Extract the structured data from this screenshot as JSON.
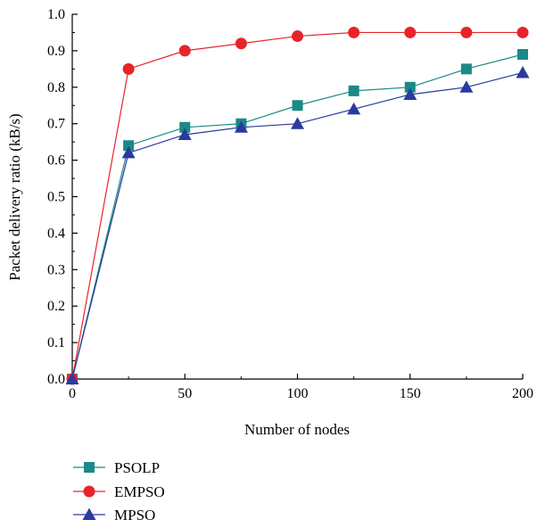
{
  "chart_data": {
    "type": "line",
    "xlabel": "Number of nodes",
    "ylabel": "Packet delivery ratio (kB/s)",
    "xlim": [
      0,
      200
    ],
    "ylim": [
      0,
      1.0
    ],
    "xticks": [
      "0",
      "50",
      "100",
      "150",
      "200"
    ],
    "yticks": [
      "0.0",
      "0.1",
      "0.2",
      "0.3",
      "0.4",
      "0.5",
      "0.6",
      "0.7",
      "0.8",
      "0.9",
      "1.0"
    ],
    "grid": false,
    "legend_position": "bottom-left",
    "x": [
      0,
      25,
      50,
      75,
      100,
      125,
      150,
      175,
      200
    ],
    "series": [
      {
        "name": "PSOLP",
        "marker": "square",
        "color": "#1a8a86",
        "values": [
          0,
          0.64,
          0.69,
          0.7,
          0.75,
          0.79,
          0.8,
          0.85,
          0.89
        ]
      },
      {
        "name": "EMPSO",
        "marker": "circle",
        "color": "#e8242a",
        "values": [
          0,
          0.85,
          0.9,
          0.92,
          0.94,
          0.95,
          0.95,
          0.95,
          0.95
        ]
      },
      {
        "name": "MPSO",
        "marker": "triangle",
        "color": "#2b3a9e",
        "values": [
          0,
          0.62,
          0.67,
          0.69,
          0.7,
          0.74,
          0.78,
          0.8,
          0.84
        ]
      }
    ]
  }
}
